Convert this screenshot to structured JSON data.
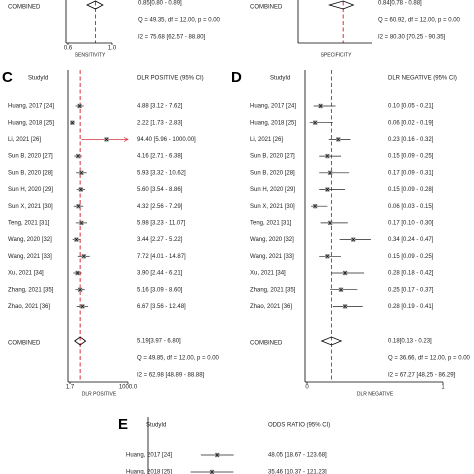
{
  "chart_data": [
    {
      "type": "forest",
      "xlabel": "SENSITIVITY",
      "xlim": [
        0.6,
        1.0
      ],
      "xticks": [
        0.6,
        {
          "value": 1.0,
          "label": "1.0"
        }
      ],
      "log": false,
      "categories": [],
      "values": [],
      "lower": [],
      "upper": [],
      "value_labels": [],
      "combined": {
        "name": "COMBINED",
        "value": 0.85,
        "lower": 0.8,
        "upper": 0.89,
        "value_label": "0.85[0.80 - 0.89]"
      },
      "stats": [
        "Q = 49.35, df = 12.00, p = 0.00",
        "I2 = 75.68 [62.57 - 88.80]"
      ],
      "point_color": "#9a9a9a",
      "ci_color": "#222222",
      "line_color": "#d9303c"
    },
    {
      "type": "forest",
      "xlabel": "SPECIFICITY",
      "xlim": [
        0.6,
        1.0
      ],
      "xticks": [],
      "log": false,
      "categories": [],
      "values": [],
      "lower": [],
      "upper": [],
      "value_labels": [],
      "combined": {
        "name": "COMBINED",
        "value": 0.84,
        "lower": 0.78,
        "upper": 0.88,
        "value_label": "0.84[0.78 - 0.88]"
      },
      "stats": [
        "Q = 60.92, df = 12.00, p = 0.00",
        "I2 = 80.30 [70.25 - 90.35]"
      ],
      "point_color": "#9a9a9a",
      "ci_color": "#222222",
      "line_color": "#d9303c"
    },
    {
      "type": "forest",
      "panel": "C",
      "study_header": "StudyId",
      "value_header": "DLR POSITIVE (95% CI)",
      "xlabel": "DLR POSITIVE",
      "xlim": [
        1.7,
        1000.0
      ],
      "xticks": [
        1.7,
        {
          "value": 1000.0,
          "label": "1000.0"
        }
      ],
      "log": true,
      "categories": [
        "Huang, 2017 [24]",
        "Huang, 2018 [25]",
        "Li, 2021 [26]",
        "Sun B, 2020 [27]",
        "Sun B, 2020 [28]",
        "Sun H, 2020 [29]",
        "Sun X, 2021 [30]",
        "Teng, 2021 [31]",
        "Wang, 2020 [32]",
        "Wang, 2021 [33]",
        "Xu, 2021 [34]",
        "Zhang, 2021 [35]",
        "Zhao, 2021 [36]"
      ],
      "values": [
        4.88,
        2.22,
        94.4,
        4.16,
        5.93,
        5.6,
        4.32,
        5.98,
        3.44,
        7.72,
        3.9,
        5.16,
        6.67
      ],
      "lower": [
        3.12,
        1.73,
        5.96,
        2.71,
        3.32,
        3.54,
        2.56,
        3.23,
        2.27,
        4.01,
        2.44,
        3.09,
        3.56
      ],
      "upper": [
        7.62,
        2.83,
        1000.0,
        6.38,
        10.62,
        8.86,
        7.29,
        11.07,
        5.22,
        14.87,
        6.21,
        8.6,
        12.48
      ],
      "value_labels": [
        "4.88 [3.12 - 7.62]",
        "2.22 [1.73 - 2.83]",
        "94.40 [5.96 - 1000.00]",
        "4.16 [2.71 - 6.38]",
        "5.93 [3.32 - 10.62]",
        "5.60 [3.54 - 8.86]",
        "4.32 [2.56 - 7.29]",
        "5.98 [3.23 - 11.07]",
        "3.44 [2.27 - 5.22]",
        "7.72 [4.01 - 14.87]",
        "3.90 [2.44 - 6.21]",
        "5.16 [3.09 - 8.60]",
        "6.67 [3.56 - 12.48]"
      ],
      "combined": {
        "name": "COMBINED",
        "value": 5.19,
        "lower": 3.97,
        "upper": 6.8,
        "value_label": "5.19[3.97 - 6.80]"
      },
      "stats": [
        "Q = 49.85, df = 12.00, p = 0.00",
        "I2 = 62.98 [48.89 - 88.88]"
      ],
      "point_color": "#9a9a9a",
      "ci_color": "#222222",
      "line_color": "#d9303c"
    },
    {
      "type": "forest",
      "panel": "D",
      "study_header": "StudyId",
      "value_header": "DLR NEGATIVE (95% CI)",
      "xlabel": "DLR NEGATIVE",
      "xlim": [
        0,
        1
      ],
      "xticks": [
        0,
        1
      ],
      "log": false,
      "categories": [
        "Huang, 2017 [24]",
        "Huang, 2018 [25]",
        "Li, 2021 [26]",
        "Sun B, 2020 [27]",
        "Sun B, 2020 [28]",
        "Sun H, 2020 [29]",
        "Sun X, 2021 [30]",
        "Teng, 2021 [31]",
        "Wang, 2020 [32]",
        "Wang, 2021 [33]",
        "Xu, 2021 [34]",
        "Zhang, 2021 [35]",
        "Zhao, 2021 [36]"
      ],
      "values": [
        0.1,
        0.06,
        0.23,
        0.15,
        0.17,
        0.15,
        0.06,
        0.17,
        0.34,
        0.15,
        0.28,
        0.25,
        0.28
      ],
      "lower": [
        0.05,
        0.02,
        0.16,
        0.09,
        0.09,
        0.09,
        0.03,
        0.1,
        0.24,
        0.09,
        0.18,
        0.17,
        0.19
      ],
      "upper": [
        0.21,
        0.19,
        0.32,
        0.25,
        0.31,
        0.28,
        0.15,
        0.3,
        0.47,
        0.25,
        0.42,
        0.37,
        0.41
      ],
      "value_labels": [
        "0.10 [0.05 - 0.21]",
        "0.06 [0.02 - 0.19]",
        "0.23 [0.16 - 0.32]",
        "0.15 [0.09 - 0.25]",
        "0.17 [0.09 - 0.31]",
        "0.15 [0.09 - 0.28]",
        "0.06 [0.03 - 0.15]",
        "0.17 [0.10 - 0.30]",
        "0.34 [0.24 - 0.47]",
        "0.15 [0.09 - 0.25]",
        "0.28 [0.18 - 0.42]",
        "0.25 [0.17 - 0.37]",
        "0.28 [0.19 - 0.41]"
      ],
      "combined": {
        "name": "COMBINED",
        "value": 0.18,
        "lower": 0.13,
        "upper": 0.23,
        "value_label": "0.18[0.13 - 0.23]"
      },
      "stats": [
        "Q = 36.66, df = 12.00, p = 0.00",
        "I2 = 67.27 [48.25 - 86.29]"
      ],
      "point_color": "#9a9a9a",
      "ci_color": "#222222",
      "line_color": "#d9303c"
    },
    {
      "type": "forest",
      "panel": "E",
      "study_header": "StudyId",
      "value_header": "ODDS RATIO (95% CI)",
      "xlim": [
        1,
        1000
      ],
      "xticks": [],
      "log": true,
      "categories": [
        "Huang, 2017 [24]",
        "Huang, 2018 [25]"
      ],
      "values": [
        48.05,
        35.46
      ],
      "lower": [
        18.67,
        10.37
      ],
      "upper": [
        123.68,
        121.23
      ],
      "value_labels": [
        "48.05 [18.67 - 123.68]",
        "35.46 [10.37 - 121.23]"
      ],
      "stats": [],
      "point_color": "#9a9a9a",
      "ci_color": "#222222",
      "line_color": "#d9303c"
    }
  ]
}
